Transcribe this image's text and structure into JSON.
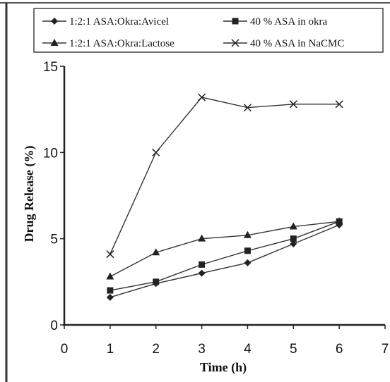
{
  "chart_data": {
    "type": "line",
    "xlabel": "Time (h)",
    "ylabel": "Drug Release (%)",
    "xlim": [
      0,
      7
    ],
    "ylim": [
      0,
      15
    ],
    "x_ticks": [
      "0",
      "1",
      "2",
      "3",
      "4",
      "5",
      "6",
      "7"
    ],
    "y_ticks": [
      "0",
      "5",
      "10",
      "15"
    ],
    "grid": false,
    "legend_position": "top",
    "series": [
      {
        "name": "1:2:1 ASA:Okra:Avicel",
        "marker": "diamond",
        "x": [
          1,
          2,
          3,
          4,
          5,
          6
        ],
        "y": [
          1.6,
          2.4,
          3.0,
          3.6,
          4.7,
          5.8
        ]
      },
      {
        "name": "40 % ASA in okra",
        "marker": "square",
        "x": [
          1,
          2,
          3,
          4,
          5,
          6
        ],
        "y": [
          2.0,
          2.5,
          3.5,
          4.3,
          5.0,
          6.0
        ]
      },
      {
        "name": "1:2:1 ASA:Okra:Lactose",
        "marker": "triangle",
        "x": [
          1,
          2,
          3,
          4,
          5,
          6
        ],
        "y": [
          2.8,
          4.2,
          5.0,
          5.2,
          5.7,
          6.0
        ]
      },
      {
        "name": "40 % ASA in NaCMC",
        "marker": "x",
        "x": [
          1,
          2,
          3,
          4,
          5,
          6
        ],
        "y": [
          4.1,
          10.0,
          13.2,
          12.6,
          12.8,
          12.8
        ]
      }
    ]
  }
}
